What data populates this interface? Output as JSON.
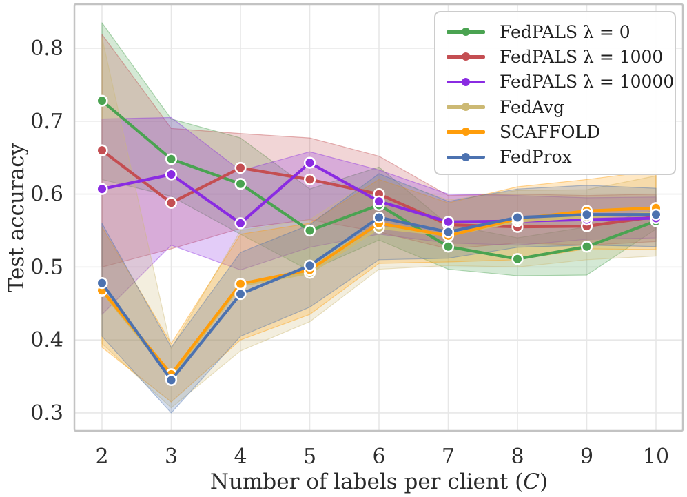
{
  "figure": {
    "ylabel": "Test accuracy",
    "xlabel_prefix": "Number of labels per client (",
    "xlabel_var": "C",
    "xlabel_suffix": ")"
  },
  "chart_data": {
    "type": "line",
    "title": "",
    "xlabel": "Number of labels per client (C)",
    "ylabel": "Test accuracy",
    "categories": [
      2,
      3,
      4,
      5,
      6,
      7,
      8,
      9,
      10
    ],
    "xtick_labels": [
      "2",
      "3",
      "4",
      "5",
      "6",
      "7",
      "8",
      "9",
      "10"
    ],
    "yticks": [
      0.3,
      0.4,
      0.5,
      0.6,
      0.7,
      0.8
    ],
    "ytick_labels": [
      "0.3",
      "0.4",
      "0.5",
      "0.6",
      "0.7",
      "0.8"
    ],
    "xlim": [
      1.602,
      10.388
    ],
    "ylim": [
      0.2754,
      0.8605
    ],
    "grid": true,
    "legend_position": "upper right",
    "band_style": "shaded mean±std",
    "colors": {
      "background": "#ffffff",
      "grid": "#e7e7e7",
      "spine": "#c3c3c3",
      "marker_edge": "#ffffff",
      "text": "#2b2b2b"
    },
    "series": [
      {
        "label": "FedPALS λ = 0",
        "color": "#4aa351",
        "values": [
          0.728,
          0.648,
          0.614,
          0.55,
          0.585,
          0.528,
          0.511,
          0.528,
          0.563
        ],
        "band_lower": [
          0.62,
          0.597,
          0.545,
          0.495,
          0.537,
          0.497,
          0.488,
          0.489,
          0.552
        ],
        "band_upper": [
          0.835,
          0.703,
          0.677,
          0.607,
          0.637,
          0.558,
          0.54,
          0.555,
          0.578
        ]
      },
      {
        "label": "FedPALS λ = 1000",
        "color": "#c44e52",
        "values": [
          0.66,
          0.588,
          0.636,
          0.62,
          0.6,
          0.558,
          0.555,
          0.556,
          0.569
        ],
        "band_lower": [
          0.5,
          0.525,
          0.553,
          0.565,
          0.548,
          0.525,
          0.533,
          0.53,
          0.535
        ],
        "band_upper": [
          0.819,
          0.69,
          0.683,
          0.677,
          0.652,
          0.598,
          0.6,
          0.598,
          0.6
        ]
      },
      {
        "label": "FedPALS λ = 10000",
        "color": "#8a2be2",
        "values": [
          0.607,
          0.627,
          0.56,
          0.643,
          0.59,
          0.562,
          0.563,
          0.565,
          0.567
        ],
        "band_lower": [
          0.435,
          0.53,
          0.496,
          0.527,
          0.545,
          0.533,
          0.53,
          0.538,
          0.54
        ],
        "band_upper": [
          0.703,
          0.705,
          0.632,
          0.658,
          0.633,
          0.6,
          0.598,
          0.595,
          0.596
        ]
      },
      {
        "label": "FedAvg",
        "color": "#ccb974",
        "values": [
          0.467,
          0.35,
          0.475,
          0.492,
          0.554,
          0.544,
          0.563,
          0.569,
          0.574
        ],
        "band_lower": [
          0.395,
          0.307,
          0.385,
          0.425,
          0.497,
          0.502,
          0.5,
          0.51,
          0.515
        ],
        "band_upper": [
          0.815,
          0.388,
          0.55,
          0.565,
          0.625,
          0.592,
          0.605,
          0.606,
          0.625
        ]
      },
      {
        "label": "SCAFFOLD",
        "color": "#ff9d0a",
        "values": [
          0.468,
          0.353,
          0.477,
          0.496,
          0.56,
          0.543,
          0.566,
          0.577,
          0.581
        ],
        "band_lower": [
          0.39,
          0.315,
          0.4,
          0.435,
          0.505,
          0.507,
          0.51,
          0.525,
          0.524
        ],
        "band_upper": [
          0.555,
          0.395,
          0.545,
          0.56,
          0.62,
          0.588,
          0.61,
          0.62,
          0.632
        ]
      },
      {
        "label": "FedProx",
        "color": "#4c72b0",
        "values": [
          0.478,
          0.345,
          0.463,
          0.502,
          0.568,
          0.548,
          0.568,
          0.572,
          0.572
        ],
        "band_lower": [
          0.405,
          0.3,
          0.405,
          0.445,
          0.51,
          0.512,
          0.527,
          0.53,
          0.528
        ],
        "band_upper": [
          0.56,
          0.39,
          0.52,
          0.558,
          0.628,
          0.59,
          0.607,
          0.612,
          0.608
        ]
      }
    ]
  }
}
